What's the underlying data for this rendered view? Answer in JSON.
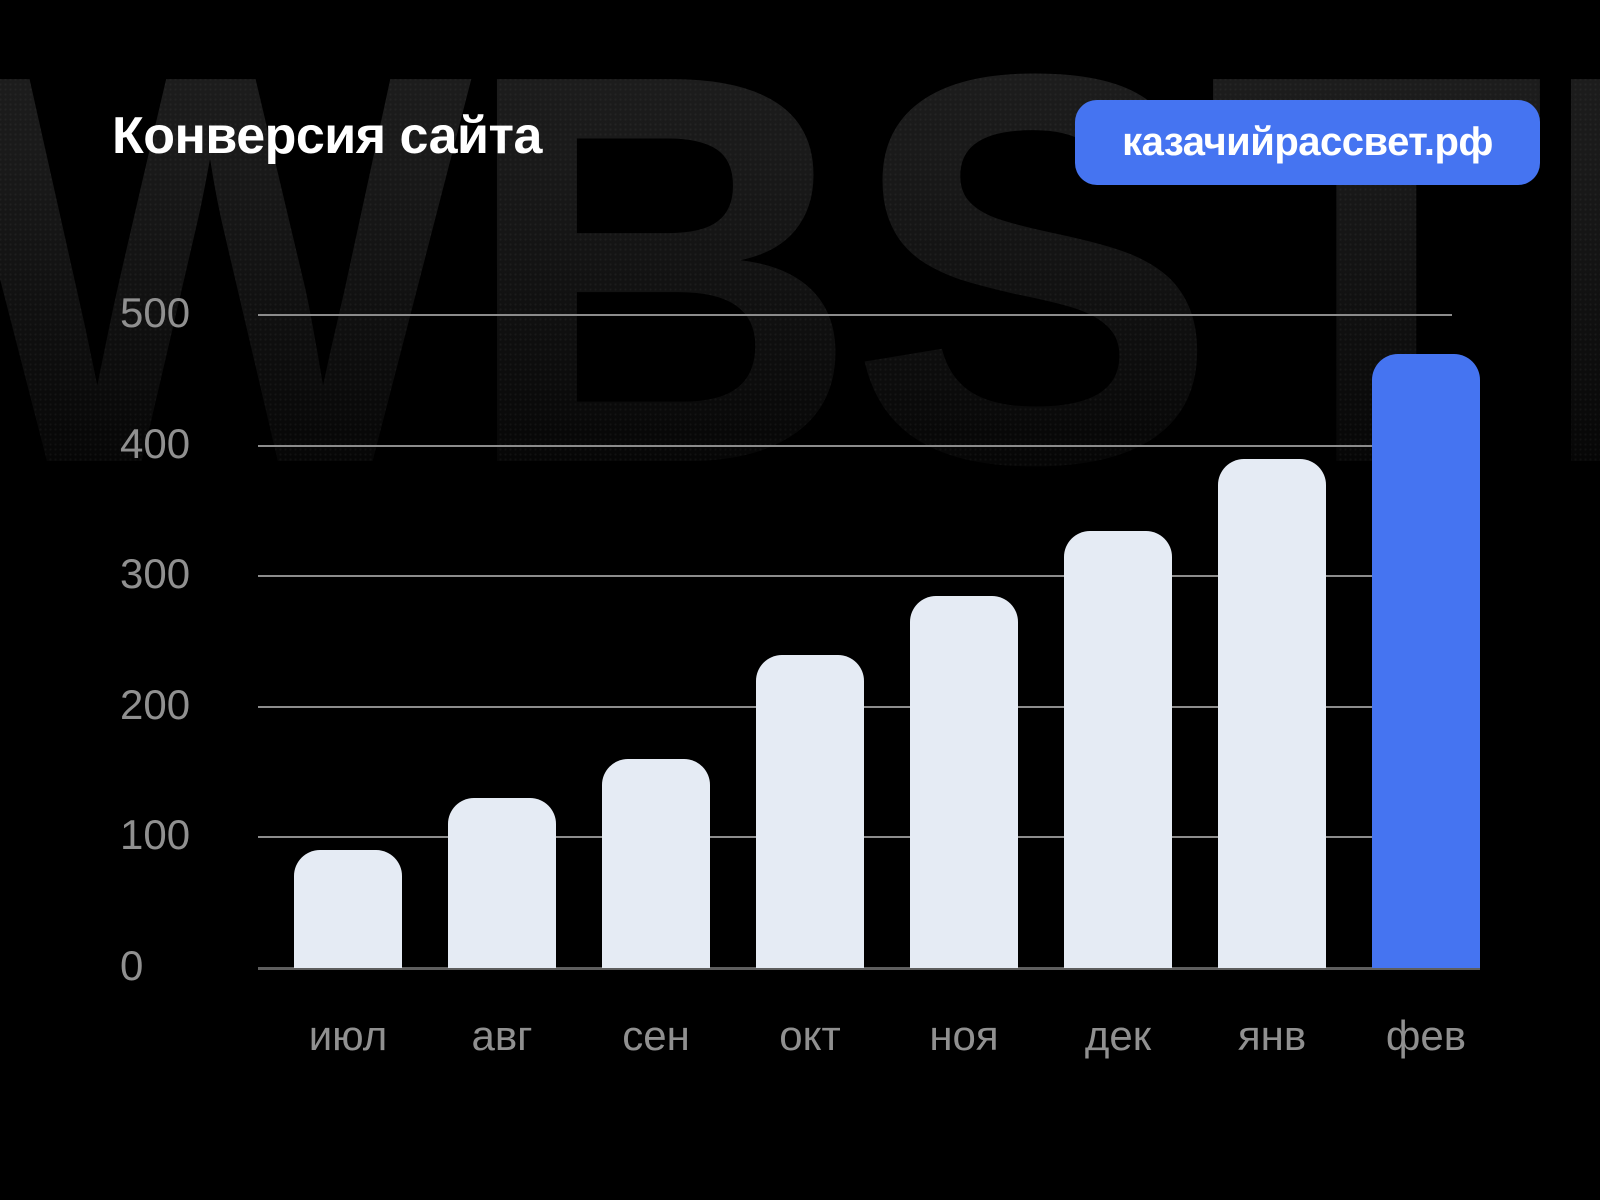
{
  "header": {
    "title": "Конверсия сайта",
    "badge_label": "казачийрассвет.рф",
    "watermark_text": "WBSTR"
  },
  "colors": {
    "background": "#000000",
    "accent": "#4574F1",
    "bar_default": "#E5EBF4",
    "grid_line": "#8C8C8C",
    "axis_line": "#5E5E5E",
    "axis_label": "#909090",
    "title_text": "#FFFFFF",
    "badge_text": "#FFFFFF"
  },
  "chart_data": {
    "type": "bar",
    "title": "Конверсия сайта",
    "categories": [
      "июл",
      "авг",
      "сен",
      "окт",
      "ноя",
      "дек",
      "янв",
      "фев"
    ],
    "values": [
      90,
      130,
      160,
      240,
      285,
      335,
      390,
      470
    ],
    "highlight_index": 7,
    "highlighted_category": "фев",
    "yticks": [
      0,
      100,
      200,
      300,
      400,
      500
    ],
    "ylim": [
      0,
      500
    ],
    "xlabel": "",
    "ylabel": "",
    "legend": false,
    "grid": "horizontal",
    "bar_colors": {
      "default": "#E5EBF4",
      "highlight": "#4574F1"
    }
  }
}
